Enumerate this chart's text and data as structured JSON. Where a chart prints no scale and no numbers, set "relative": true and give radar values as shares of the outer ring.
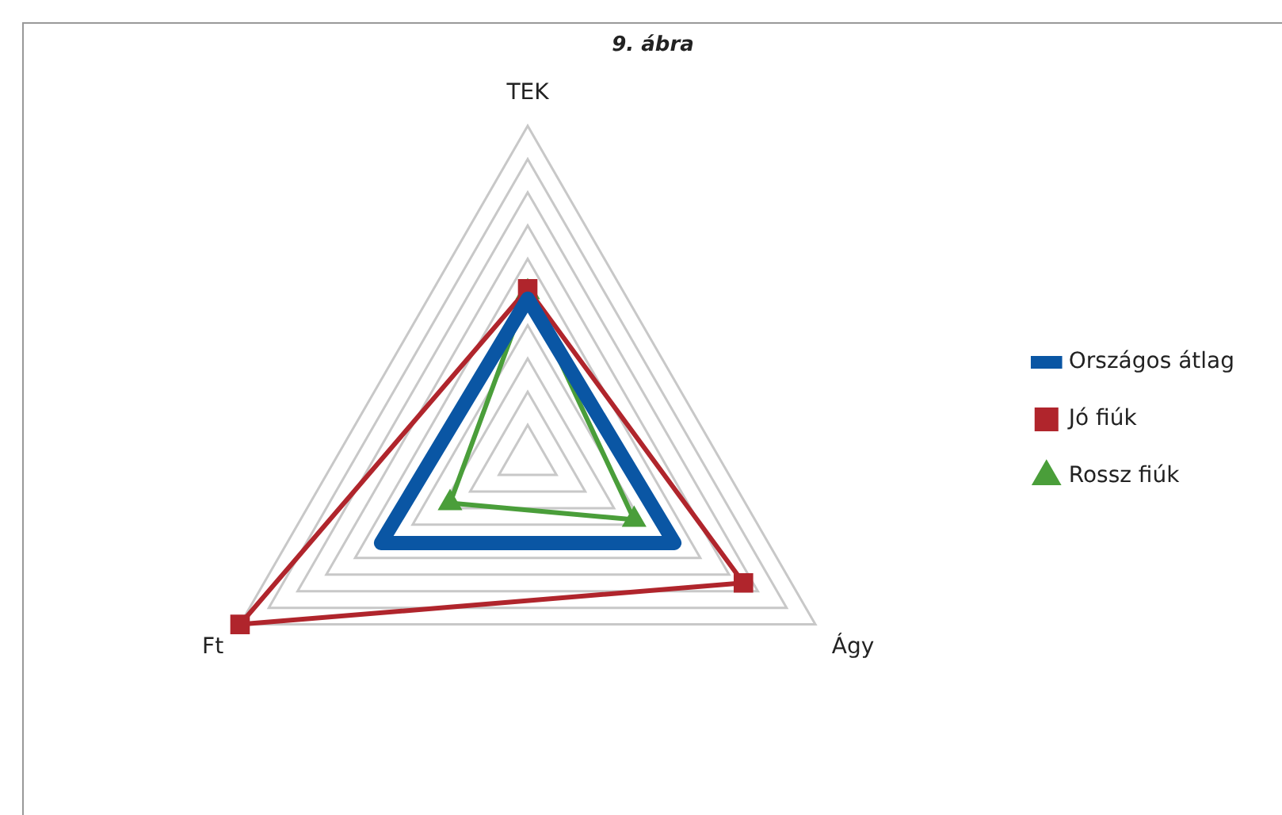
{
  "chart_data": {
    "type": "radar",
    "title": "9. ábra",
    "relative": true,
    "categories": [
      "TEK",
      "Ágy",
      "Ft"
    ],
    "series": [
      {
        "name": "Országos átlag",
        "color": "#0a56a4",
        "marker": "none",
        "values": [
          0.48,
          0.51,
          0.51
        ]
      },
      {
        "name": "Jó fiúk",
        "color": "#b0252c",
        "marker": "square",
        "values": [
          0.51,
          0.75,
          1.0
        ]
      },
      {
        "name": "Rossz fiúk",
        "color": "#4a9e3a",
        "marker": "triangle",
        "values": [
          0.5,
          0.37,
          0.27
        ]
      }
    ],
    "grid": true,
    "legend": "right"
  }
}
